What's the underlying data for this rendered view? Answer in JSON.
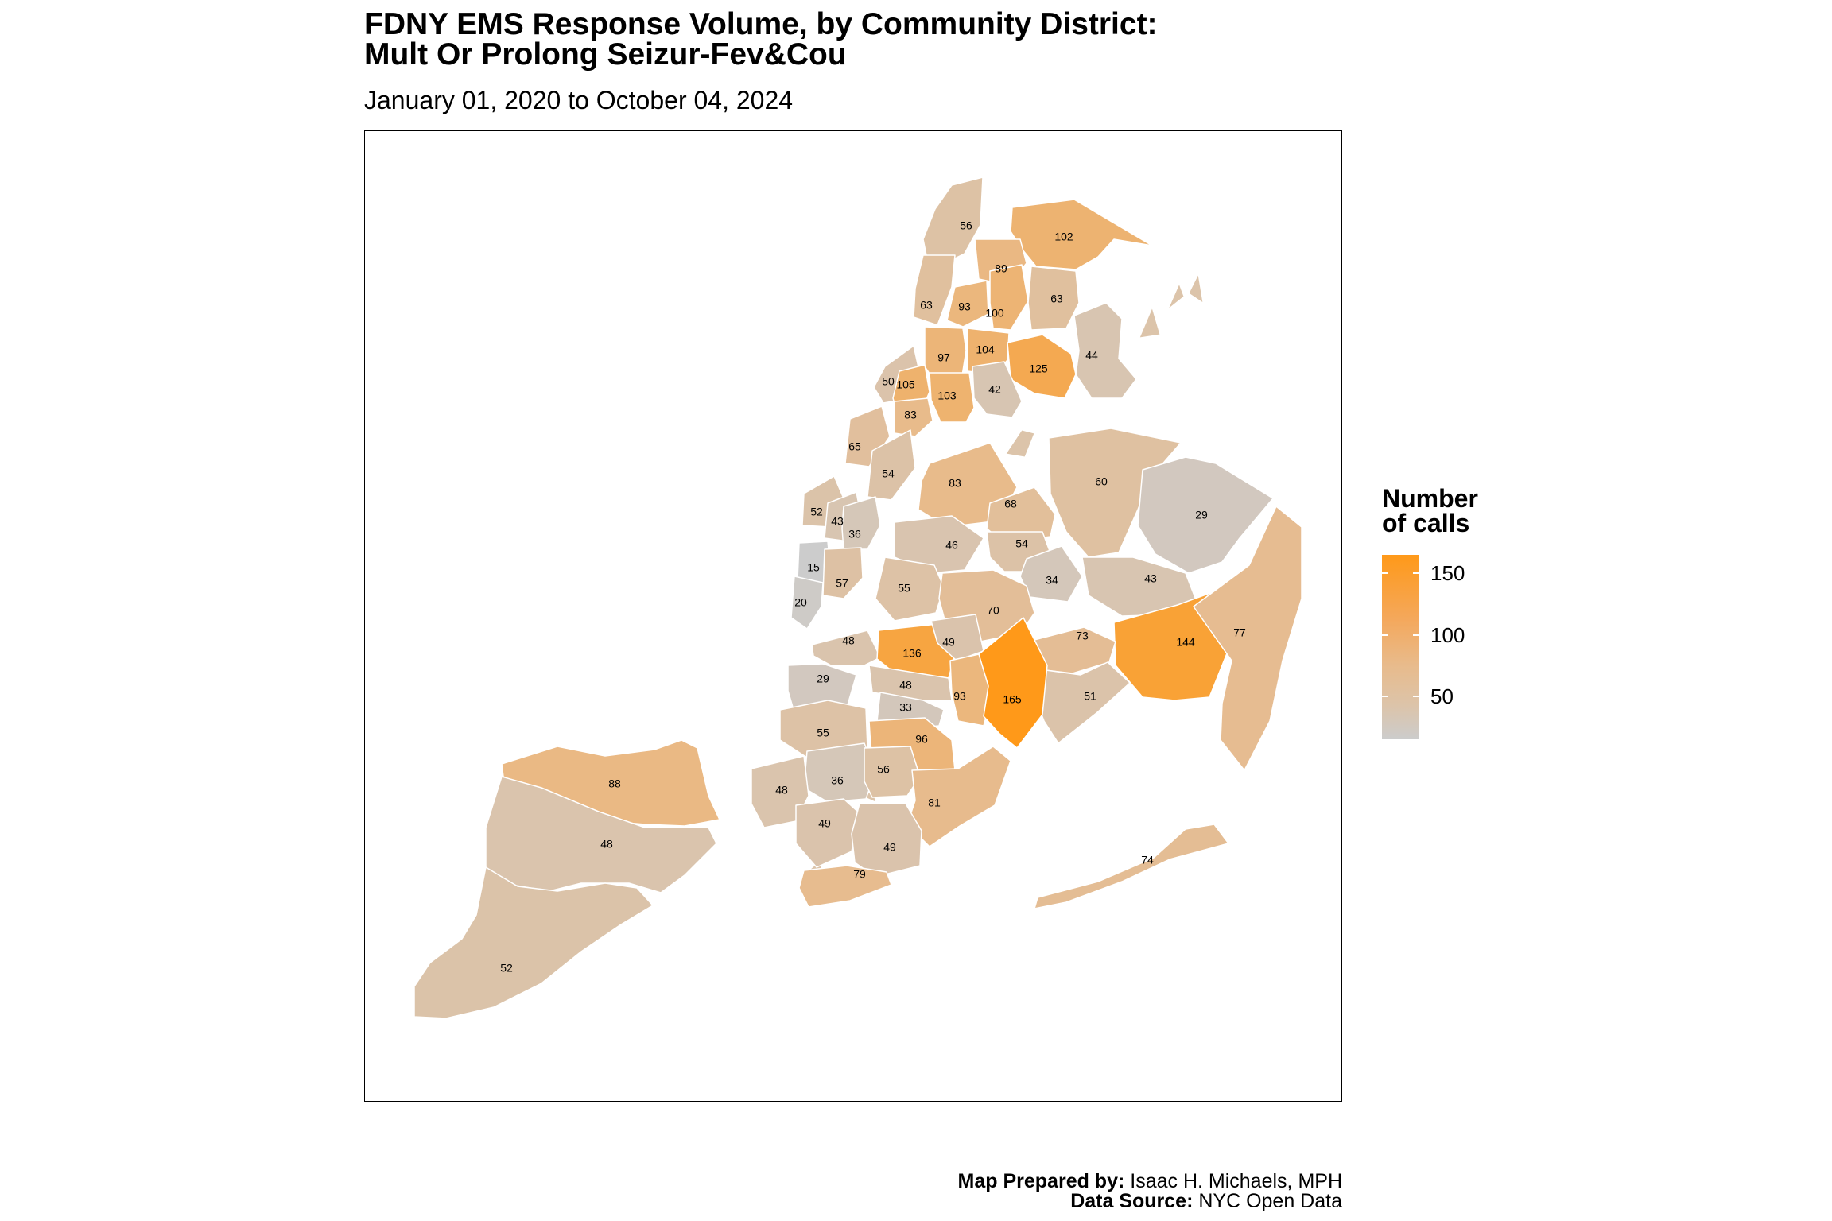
{
  "title": {
    "line1": "FDNY EMS Response Volume, by Community District:",
    "line2": "Mult Or Prolong Seizur-Fev&Cou"
  },
  "subtitle": "January 01, 2020 to October 04, 2024",
  "legend": {
    "title_line1": "Number",
    "title_line2": "of calls",
    "ticks": [
      {
        "label": "150",
        "value": 150
      },
      {
        "label": "100",
        "value": 100
      },
      {
        "label": "50",
        "value": 50
      }
    ],
    "min_value": 15,
    "max_value": 165,
    "color_low": "#cccccc",
    "color_high": "#ff9919"
  },
  "districts": [
    {
      "borough": "Bronx",
      "value": 56
    },
    {
      "borough": "Bronx",
      "value": 102
    },
    {
      "borough": "Bronx",
      "value": 89
    },
    {
      "borough": "Bronx",
      "value": 63
    },
    {
      "borough": "Bronx",
      "value": 93
    },
    {
      "borough": "Bronx",
      "value": 100
    },
    {
      "borough": "Bronx",
      "value": 63
    },
    {
      "borough": "Bronx",
      "value": 97
    },
    {
      "borough": "Bronx",
      "value": 104
    },
    {
      "borough": "Bronx",
      "value": 125
    },
    {
      "borough": "Bronx",
      "value": 44
    },
    {
      "borough": "Bronx",
      "value": 42
    },
    {
      "borough": "Bronx",
      "value": 103
    },
    {
      "borough": "Manhattan",
      "value": 50
    },
    {
      "borough": "Manhattan",
      "value": 105
    },
    {
      "borough": "Manhattan",
      "value": 83
    },
    {
      "borough": "Manhattan",
      "value": 65
    },
    {
      "borough": "Manhattan",
      "value": 54
    },
    {
      "borough": "Manhattan",
      "value": 52
    },
    {
      "borough": "Manhattan",
      "value": 43
    },
    {
      "borough": "Manhattan",
      "value": 36
    },
    {
      "borough": "Manhattan",
      "value": 15
    },
    {
      "borough": "Manhattan",
      "value": 57
    },
    {
      "borough": "Manhattan",
      "value": 20
    },
    {
      "borough": "Queens",
      "value": 83
    },
    {
      "borough": "Queens",
      "value": 68
    },
    {
      "borough": "Queens",
      "value": 60
    },
    {
      "borough": "Queens",
      "value": 29
    },
    {
      "borough": "Queens",
      "value": 46
    },
    {
      "borough": "Queens",
      "value": 54
    },
    {
      "borough": "Queens",
      "value": 34
    },
    {
      "borough": "Queens",
      "value": 43
    },
    {
      "borough": "Queens",
      "value": 55
    },
    {
      "borough": "Queens",
      "value": 70
    },
    {
      "borough": "Queens",
      "value": 144
    },
    {
      "borough": "Queens",
      "value": 77
    },
    {
      "borough": "Queens",
      "value": 73
    },
    {
      "borough": "Queens",
      "value": 51
    },
    {
      "borough": "Queens",
      "value": 74
    },
    {
      "borough": "Brooklyn",
      "value": 48
    },
    {
      "borough": "Brooklyn",
      "value": 136
    },
    {
      "borough": "Brooklyn",
      "value": 49
    },
    {
      "borough": "Brooklyn",
      "value": 29
    },
    {
      "borough": "Brooklyn",
      "value": 48
    },
    {
      "borough": "Brooklyn",
      "value": 93
    },
    {
      "borough": "Brooklyn",
      "value": 165
    },
    {
      "borough": "Brooklyn",
      "value": 33
    },
    {
      "borough": "Brooklyn",
      "value": 55
    },
    {
      "borough": "Brooklyn",
      "value": 96
    },
    {
      "borough": "Brooklyn",
      "value": 36
    },
    {
      "borough": "Brooklyn",
      "value": 56
    },
    {
      "borough": "Brooklyn",
      "value": 48
    },
    {
      "borough": "Brooklyn",
      "value": 81
    },
    {
      "borough": "Brooklyn",
      "value": 49
    },
    {
      "borough": "Brooklyn",
      "value": 49
    },
    {
      "borough": "Brooklyn",
      "value": 79
    },
    {
      "borough": "Staten Island",
      "value": 88
    },
    {
      "borough": "Staten Island",
      "value": 48
    },
    {
      "borough": "Staten Island",
      "value": 52
    }
  ],
  "caption": {
    "prepared_label": "Map Prepared by:",
    "prepared_value": " Isaac H. Michaels, MPH",
    "source_label": "Data Source:",
    "source_value": " NYC Open Data"
  }
}
